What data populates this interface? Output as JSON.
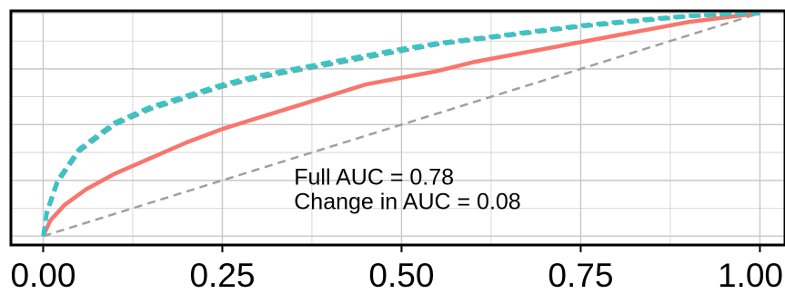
{
  "chart_data": {
    "type": "line",
    "title": "",
    "xlabel": "",
    "ylabel": "",
    "xlim": [
      -0.045,
      1.035
    ],
    "ylim": [
      -0.04,
      1.01
    ],
    "x_ticks": [
      0.0,
      0.25,
      0.5,
      0.75,
      1.0
    ],
    "x_tick_labels": [
      "0.00",
      "0.25",
      "0.50",
      "0.75",
      "1.00"
    ],
    "y_ticks": [
      0.0,
      0.25,
      0.5,
      0.75,
      1.0
    ],
    "y_tick_labels": [],
    "grid": true,
    "legend": "none",
    "series": [
      {
        "style": "solid",
        "color": "#f8766d",
        "x": [
          0,
          0.01,
          0.03,
          0.06,
          0.1,
          0.15,
          0.2,
          0.25,
          0.3,
          0.35,
          0.4,
          0.45,
          0.5,
          0.55,
          0.6,
          0.65,
          0.7,
          0.75,
          0.8,
          0.85,
          0.9,
          0.95,
          1.0
        ],
        "y": [
          0,
          0.07,
          0.14,
          0.21,
          0.28,
          0.35,
          0.42,
          0.48,
          0.53,
          0.58,
          0.63,
          0.68,
          0.71,
          0.74,
          0.78,
          0.81,
          0.84,
          0.87,
          0.9,
          0.93,
          0.96,
          0.98,
          1.0
        ]
      },
      {
        "style": "dashed",
        "color": "#5ab4ac",
        "x": [
          0,
          0.005,
          0.02,
          0.05,
          0.1,
          0.15,
          0.2,
          0.25,
          0.3,
          0.35,
          0.4,
          0.45,
          0.5,
          0.55,
          0.6,
          0.65,
          0.7,
          0.75,
          0.8,
          0.85,
          0.9,
          0.95,
          1.0
        ],
        "y": [
          0,
          0.1,
          0.24,
          0.38,
          0.5,
          0.57,
          0.62,
          0.67,
          0.71,
          0.74,
          0.77,
          0.8,
          0.83,
          0.86,
          0.88,
          0.9,
          0.92,
          0.94,
          0.955,
          0.97,
          0.985,
          0.995,
          1.0
        ]
      },
      {
        "style": "dashed",
        "color": "#39c4c9",
        "x": [
          0,
          0.005,
          0.02,
          0.05,
          0.1,
          0.15,
          0.2,
          0.25,
          0.3,
          0.35,
          0.4,
          0.45,
          0.5,
          0.55,
          0.6,
          0.65,
          0.7,
          0.75,
          0.8,
          0.85,
          0.9,
          0.95,
          1.0
        ],
        "y": [
          0,
          0.11,
          0.25,
          0.39,
          0.51,
          0.58,
          0.63,
          0.68,
          0.72,
          0.75,
          0.78,
          0.81,
          0.84,
          0.865,
          0.885,
          0.905,
          0.925,
          0.945,
          0.96,
          0.975,
          0.988,
          0.996,
          1.0
        ]
      },
      {
        "style": "dashed",
        "color": "#a0a0a0",
        "x": [
          0,
          1
        ],
        "y": [
          0,
          1
        ]
      }
    ],
    "annotations": [
      {
        "text": "Full AUC = 0.78",
        "x": 0.35,
        "y": 0.23
      },
      {
        "text": "Change in AUC = 0.08",
        "x": 0.35,
        "y": 0.12
      }
    ]
  }
}
